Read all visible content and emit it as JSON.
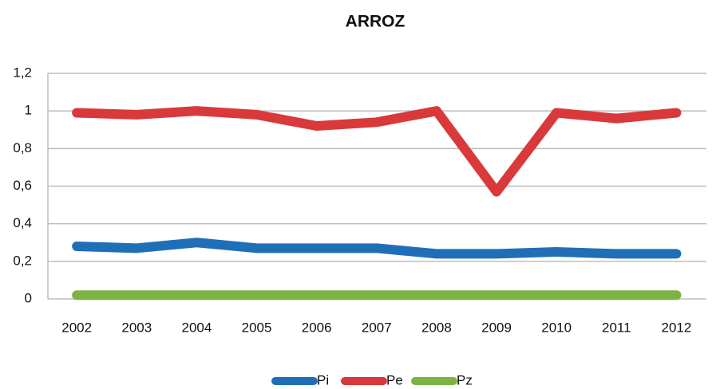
{
  "chart_data": {
    "type": "line",
    "title": "ARROZ",
    "categories": [
      "2002",
      "2003",
      "2004",
      "2005",
      "2006",
      "2007",
      "2008",
      "2009",
      "2010",
      "2011",
      "2012"
    ],
    "series": [
      {
        "name": "Pi",
        "color": "#1f6fb8",
        "values": [
          0.28,
          0.27,
          0.3,
          0.27,
          0.27,
          0.27,
          0.24,
          0.24,
          0.25,
          0.24,
          0.24
        ]
      },
      {
        "name": "Pe",
        "color": "#d9393b",
        "values": [
          0.99,
          0.98,
          1.0,
          0.98,
          0.92,
          0.94,
          1.0,
          0.57,
          0.99,
          0.96,
          0.99
        ]
      },
      {
        "name": "Pz",
        "color": "#7cb342",
        "values": [
          0.02,
          0.02,
          0.02,
          0.02,
          0.02,
          0.02,
          0.02,
          0.02,
          0.02,
          0.02,
          0.02
        ]
      }
    ],
    "ylim": [
      0,
      1.2
    ],
    "yticks": [
      0,
      {
        "value": 0.2,
        "label": "0,2"
      },
      {
        "value": 0.4,
        "label": "0,4"
      },
      {
        "value": 0.6,
        "label": "0,6"
      },
      {
        "value": 0.8,
        "label": "0,8"
      },
      1,
      {
        "value": 1.2,
        "label": "1,2"
      }
    ],
    "grid": true,
    "legend": "bottom"
  }
}
